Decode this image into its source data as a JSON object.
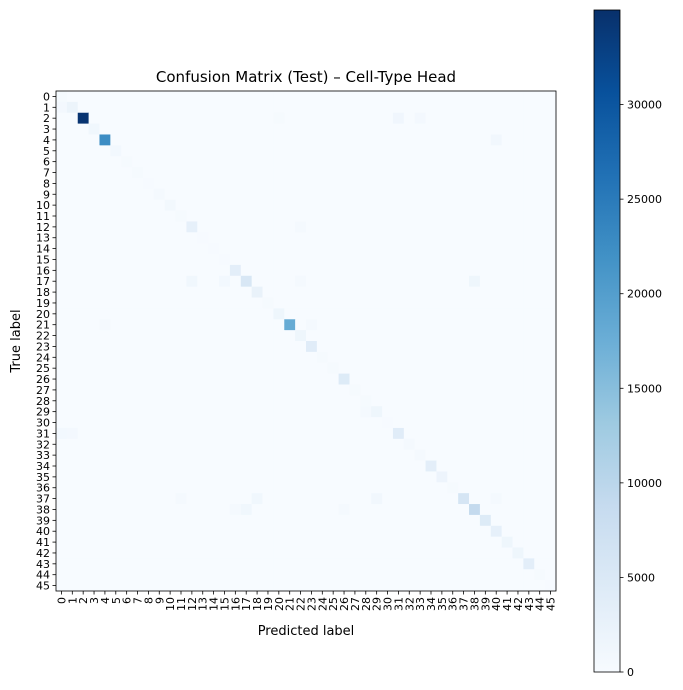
{
  "chart_data": {
    "type": "heatmap",
    "title": "Confusion Matrix (Test) – Cell-Type Head",
    "xlabel": "Predicted label",
    "ylabel": "True label",
    "labels": [
      "0",
      "1",
      "2",
      "3",
      "4",
      "5",
      "6",
      "7",
      "8",
      "9",
      "10",
      "11",
      "12",
      "13",
      "14",
      "15",
      "16",
      "17",
      "18",
      "19",
      "20",
      "21",
      "22",
      "23",
      "24",
      "25",
      "26",
      "27",
      "28",
      "29",
      "30",
      "31",
      "32",
      "33",
      "34",
      "35",
      "36",
      "37",
      "38",
      "39",
      "40",
      "41",
      "42",
      "43",
      "44",
      "45"
    ],
    "colormap": "Blues",
    "colorbar": {
      "min": 0,
      "max": 35000,
      "ticks": [
        0,
        5000,
        10000,
        15000,
        20000,
        25000,
        30000
      ]
    },
    "diagonal": [
      300,
      2000,
      34500,
      1200,
      22500,
      800,
      400,
      300,
      250,
      500,
      900,
      300,
      3000,
      200,
      150,
      200,
      3500,
      5500,
      2500,
      300,
      1500,
      18000,
      1500,
      4000,
      300,
      300,
      4500,
      300,
      300,
      1500,
      200,
      4000,
      600,
      500,
      3500,
      1800,
      400,
      6000,
      9000,
      4500,
      3000,
      1500,
      1500,
      3500,
      300,
      200
    ],
    "off_diagonal": [
      {
        "true": 1,
        "pred": 0,
        "value": 700
      },
      {
        "true": 2,
        "pred": 31,
        "value": 1300
      },
      {
        "true": 2,
        "pred": 33,
        "value": 700
      },
      {
        "true": 2,
        "pred": 20,
        "value": 300
      },
      {
        "true": 4,
        "pred": 40,
        "value": 1000
      },
      {
        "true": 12,
        "pred": 22,
        "value": 500
      },
      {
        "true": 17,
        "pred": 12,
        "value": 1200
      },
      {
        "true": 17,
        "pred": 15,
        "value": 800
      },
      {
        "true": 17,
        "pred": 38,
        "value": 1500
      },
      {
        "true": 17,
        "pred": 22,
        "value": 500
      },
      {
        "true": 21,
        "pred": 4,
        "value": 500
      },
      {
        "true": 21,
        "pred": 23,
        "value": 500
      },
      {
        "true": 29,
        "pred": 28,
        "value": 500
      },
      {
        "true": 31,
        "pred": 0,
        "value": 800
      },
      {
        "true": 31,
        "pred": 1,
        "value": 700
      },
      {
        "true": 37,
        "pred": 11,
        "value": 600
      },
      {
        "true": 37,
        "pred": 18,
        "value": 1200
      },
      {
        "true": 37,
        "pred": 29,
        "value": 1000
      },
      {
        "true": 37,
        "pred": 40,
        "value": 500
      },
      {
        "true": 38,
        "pred": 17,
        "value": 1200
      },
      {
        "true": 38,
        "pred": 16,
        "value": 600
      },
      {
        "true": 38,
        "pred": 26,
        "value": 500
      }
    ]
  }
}
